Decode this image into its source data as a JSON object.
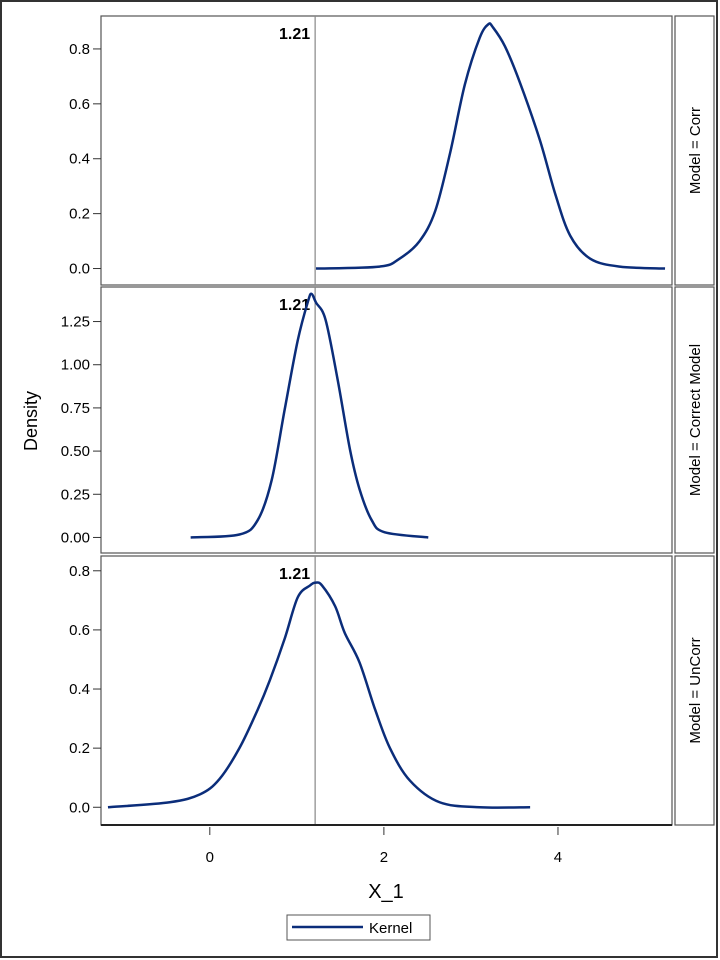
{
  "chart_data": {
    "type": "line",
    "xlabel": "X_1",
    "ylabel": "Density",
    "xlim": [
      -1.25,
      5.31
    ],
    "xticks": [
      "0",
      "2",
      "4"
    ],
    "xtick_values": [
      0,
      2,
      4
    ],
    "reference_line": {
      "x": 1.21,
      "label": "1.21"
    },
    "legend": {
      "placement": "bottom-center",
      "entries": [
        "Kernel"
      ]
    },
    "line_color": "#0b2d7a",
    "panels": [
      {
        "strip": "Model = Corr",
        "ylim": [
          -0.06,
          0.92
        ],
        "yticks": [
          "0.0",
          "0.2",
          "0.4",
          "0.6",
          "0.8"
        ],
        "ytick_values": [
          0,
          0.2,
          0.4,
          0.6,
          0.8
        ],
        "series": {
          "name": "Kernel",
          "x": [
            1.22,
            1.95,
            2.18,
            2.41,
            2.59,
            2.76,
            2.93,
            3.1,
            3.2,
            3.25,
            3.39,
            3.56,
            3.79,
            3.97,
            4.14,
            4.37,
            4.71,
            5.23
          ],
          "y": [
            0,
            0.007,
            0.036,
            0.1,
            0.21,
            0.42,
            0.67,
            0.84,
            0.89,
            0.88,
            0.81,
            0.68,
            0.47,
            0.27,
            0.12,
            0.036,
            0.007,
            0
          ]
        }
      },
      {
        "strip": "Model = Correct Model",
        "ylim": [
          -0.09,
          1.45
        ],
        "yticks": [
          "0.00",
          "0.25",
          "0.50",
          "0.75",
          "1.00",
          "1.25"
        ],
        "ytick_values": [
          0,
          0.25,
          0.5,
          0.75,
          1.0,
          1.25
        ],
        "series": {
          "name": "Kernel",
          "x": [
            -0.22,
            0.34,
            0.55,
            0.71,
            0.86,
            1.01,
            1.13,
            1.17,
            1.22,
            1.33,
            1.47,
            1.61,
            1.72,
            1.86,
            2.01,
            2.51
          ],
          "y": [
            0,
            0.017,
            0.1,
            0.33,
            0.74,
            1.14,
            1.37,
            1.41,
            1.36,
            1.26,
            0.91,
            0.51,
            0.28,
            0.1,
            0.03,
            0
          ]
        }
      },
      {
        "strip": "Model = UnCorr",
        "ylim": [
          -0.06,
          0.85
        ],
        "yticks": [
          "0.0",
          "0.2",
          "0.4",
          "0.6",
          "0.8"
        ],
        "ytick_values": [
          0,
          0.2,
          0.4,
          0.6,
          0.8
        ],
        "series": {
          "name": "Kernel",
          "x": [
            -1.17,
            -0.46,
            -0.11,
            0.11,
            0.34,
            0.55,
            0.69,
            0.86,
            1.01,
            1.15,
            1.22,
            1.29,
            1.44,
            1.55,
            1.72,
            1.9,
            2.07,
            2.3,
            2.64,
            3.1,
            3.68
          ],
          "y": [
            0,
            0.017,
            0.044,
            0.095,
            0.2,
            0.33,
            0.43,
            0.57,
            0.71,
            0.75,
            0.76,
            0.75,
            0.68,
            0.59,
            0.49,
            0.33,
            0.2,
            0.09,
            0.017,
            0,
            0
          ]
        }
      }
    ]
  }
}
